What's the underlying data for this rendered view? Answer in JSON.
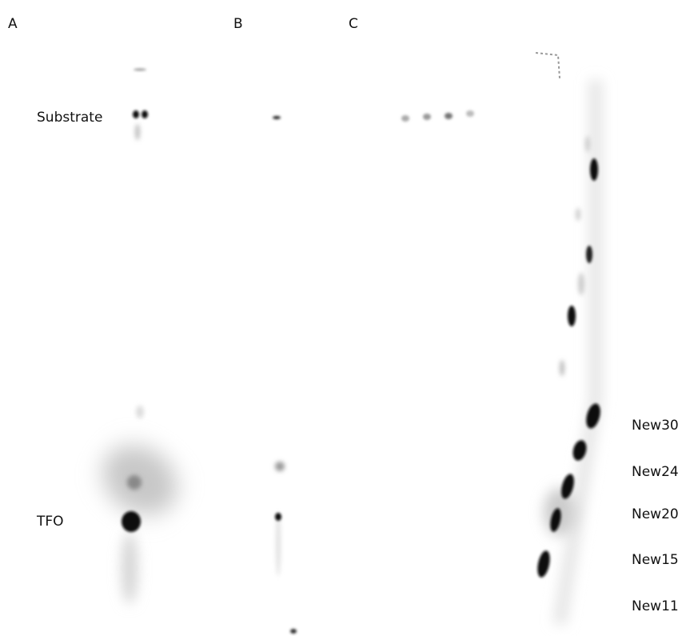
{
  "panels": [
    "A",
    "B",
    "C"
  ],
  "lane_labels": {
    "substrate": "Substrate",
    "tfo": "TFO"
  },
  "band_labels": [
    "New30",
    "New24",
    "New20",
    "New15",
    "New11"
  ]
}
